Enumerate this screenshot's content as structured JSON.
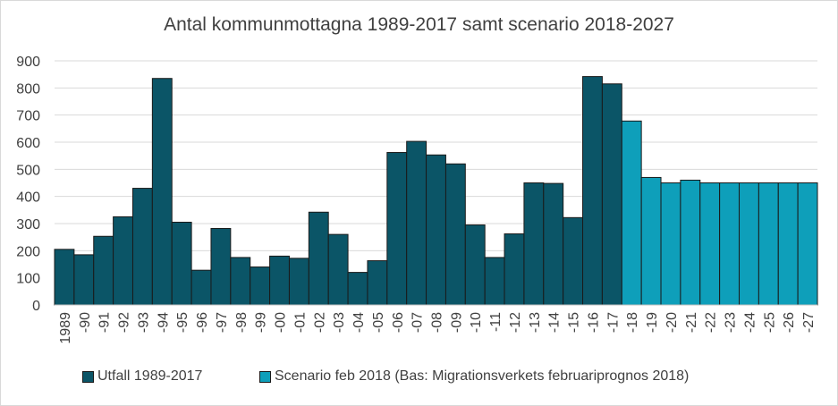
{
  "colors": {
    "utfall": "#0b5567",
    "scenario": "#0e9fba",
    "bar_stroke": "#1a1a1a",
    "gridline": "#d9d9d9",
    "text": "#404040"
  },
  "chart_data": {
    "type": "bar",
    "title": "Antal kommunmottagna  1989-2017 samt scenario 2018-2027",
    "xlabel": "",
    "ylabel": "",
    "ylim": [
      0,
      900
    ],
    "yticks": [
      0,
      100,
      200,
      300,
      400,
      500,
      600,
      700,
      800,
      900
    ],
    "grid": true,
    "legend_position": "bottom",
    "categories": [
      "1989",
      "-90",
      "-91",
      "-92",
      "-93",
      "-94",
      "-95",
      "-96",
      "-97",
      "-98",
      "-99",
      "-00",
      "-01",
      "-02",
      "-03",
      "-04",
      "-05",
      "-06",
      "-07",
      "-08",
      "-09",
      "-10",
      "-11",
      "-12",
      "-13",
      "-14",
      "-15",
      "-16",
      "-17",
      "-18",
      "-19",
      "-20",
      "-21",
      "-22",
      "-23",
      "-24",
      "-25",
      "-26",
      "-27"
    ],
    "series": [
      {
        "name": "Utfall 1989-2017",
        "values": [
          205,
          185,
          253,
          325,
          430,
          835,
          305,
          128,
          282,
          175,
          140,
          180,
          172,
          342,
          260,
          120,
          163,
          562,
          603,
          553,
          520,
          295,
          175,
          262,
          450,
          448,
          322,
          842,
          815,
          null,
          null,
          null,
          null,
          null,
          null,
          null,
          null,
          null,
          null
        ]
      },
      {
        "name": "Scenario feb 2018 (Bas: Migrationsverkets februariprognos 2018)",
        "values": [
          null,
          null,
          null,
          null,
          null,
          null,
          null,
          null,
          null,
          null,
          null,
          null,
          null,
          null,
          null,
          null,
          null,
          null,
          null,
          null,
          null,
          null,
          null,
          null,
          null,
          null,
          null,
          null,
          null,
          678,
          470,
          450,
          460,
          450,
          450,
          450,
          450,
          450,
          450
        ]
      }
    ]
  }
}
